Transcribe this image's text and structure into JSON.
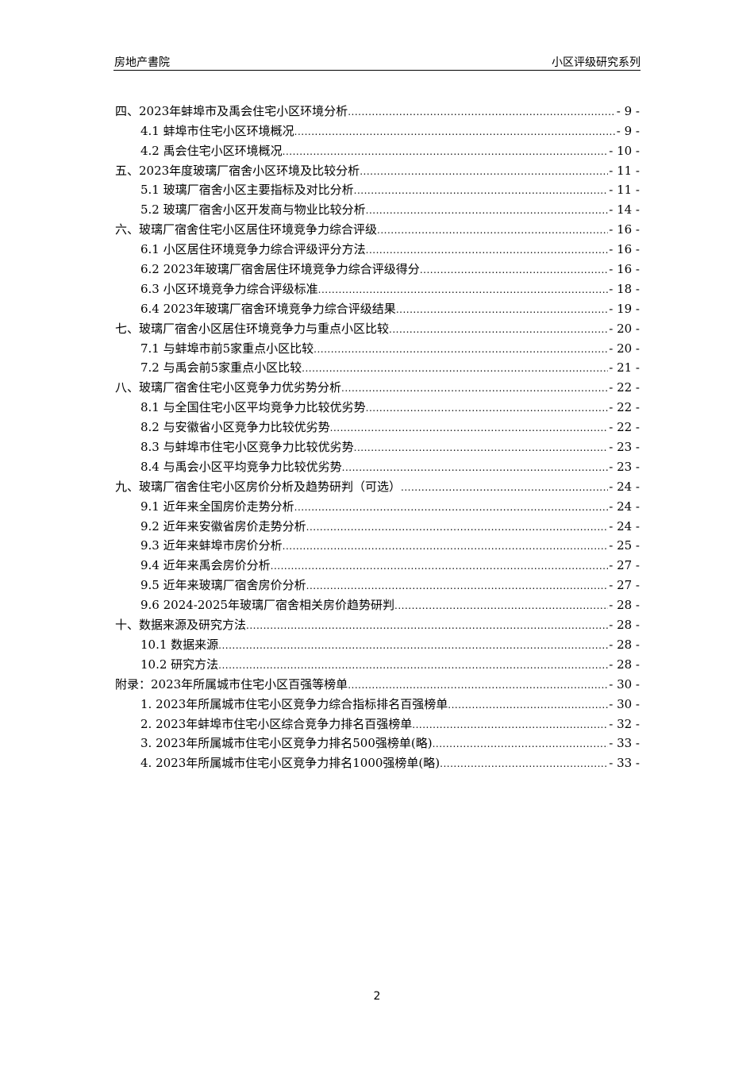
{
  "header": {
    "left": "房地产書院",
    "right": "小区评级研究系列"
  },
  "toc": [
    {
      "level": 1,
      "title": "四、2023年蚌埠市及禹会住宅小区环境分析",
      "page": "- 9 -"
    },
    {
      "level": 2,
      "title": "4.1 蚌埠市住宅小区环境概况",
      "page": "- 9 -"
    },
    {
      "level": 2,
      "title": "4.2 禹会住宅小区环境概况",
      "page": "- 10 -"
    },
    {
      "level": 1,
      "title": "五、2023年度玻璃厂宿舍小区环境及比较分析",
      "page": "- 11 -"
    },
    {
      "level": 2,
      "title": "5.1 玻璃厂宿舍小区主要指标及对比分析",
      "page": "- 11 -"
    },
    {
      "level": 2,
      "title": "5.2 玻璃厂宿舍小区开发商与物业比较分析",
      "page": "- 14 -"
    },
    {
      "level": 1,
      "title": "六、玻璃厂宿舍住宅小区居住环境竞争力综合评级",
      "page": "- 16 -"
    },
    {
      "level": 2,
      "title": "6.1 小区居住环境竞争力综合评级评分方法",
      "page": "- 16 -"
    },
    {
      "level": 2,
      "title": "6.2 2023年玻璃厂宿舍居住环境竞争力综合评级得分",
      "page": "- 16 -"
    },
    {
      "level": 2,
      "title": "6.3 小区环境竞争力综合评级标准",
      "page": "- 18 -"
    },
    {
      "level": 2,
      "title": "6.4 2023年玻璃厂宿舍环境竞争力综合评级结果",
      "page": "- 19 -"
    },
    {
      "level": 1,
      "title": "七、玻璃厂宿舍小区居住环境竞争力与重点小区比较",
      "page": "- 20 -"
    },
    {
      "level": 2,
      "title": "7.1 与蚌埠市前5家重点小区比较",
      "page": "- 20 -"
    },
    {
      "level": 2,
      "title": "7.2 与禹会前5家重点小区比较",
      "page": "- 21 -"
    },
    {
      "level": 1,
      "title": "八、玻璃厂宿舍住宅小区竞争力优劣势分析",
      "page": "- 22 -"
    },
    {
      "level": 2,
      "title": "8.1 与全国住宅小区平均竞争力比较优劣势",
      "page": "- 22 -"
    },
    {
      "level": 2,
      "title": "8.2 与安徽省小区竞争力比较优劣势",
      "page": "- 22 -"
    },
    {
      "level": 2,
      "title": "8.3 与蚌埠市住宅小区竞争力比较优劣势",
      "page": "- 23 -"
    },
    {
      "level": 2,
      "title": "8.4 与禹会小区平均竞争力比较优劣势",
      "page": "- 23 -"
    },
    {
      "level": 1,
      "title": "九、玻璃厂宿舍住宅小区房价分析及趋势研判（可选）",
      "page": "- 24 -"
    },
    {
      "level": 2,
      "title": "9.1 近年来全国房价走势分析",
      "page": "- 24 -"
    },
    {
      "level": 2,
      "title": "9.2 近年来安徽省房价走势分析",
      "page": "- 24 -"
    },
    {
      "level": 2,
      "title": "9.3 近年来蚌埠市房价分析",
      "page": "- 25 -"
    },
    {
      "level": 2,
      "title": "9.4 近年来禹会房价分析",
      "page": "- 27 -"
    },
    {
      "level": 2,
      "title": "9.5 近年来玻璃厂宿舍房价分析",
      "page": "- 27 -"
    },
    {
      "level": 2,
      "title": "9.6 2024-2025年玻璃厂宿舍相关房价趋势研判",
      "page": "- 28 -"
    },
    {
      "level": 1,
      "title": "十、数据来源及研究方法",
      "page": "- 28 -"
    },
    {
      "level": 2,
      "title": "10.1 数据来源",
      "page": "- 28 -"
    },
    {
      "level": 2,
      "title": "10.2 研究方法",
      "page": "- 28 -"
    },
    {
      "level": 1,
      "title": "附录：2023年所属城市住宅小区百强等榜单",
      "page": "- 30 -"
    },
    {
      "level": 2,
      "title": "1. 2023年所属城市住宅小区竞争力综合指标排名百强榜单",
      "page": "- 30 -"
    },
    {
      "level": 2,
      "title": "2. 2023年蚌埠市住宅小区综合竞争力排名百强榜单",
      "page": "- 32 -"
    },
    {
      "level": 2,
      "title": "3. 2023年所属城市住宅小区竞争力排名500强榜单(略)",
      "page": "- 33 -"
    },
    {
      "level": 2,
      "title": "4. 2023年所属城市住宅小区竞争力排名1000强榜单(略)",
      "page": "- 33 -"
    }
  ],
  "footer": {
    "page_number": "2"
  }
}
